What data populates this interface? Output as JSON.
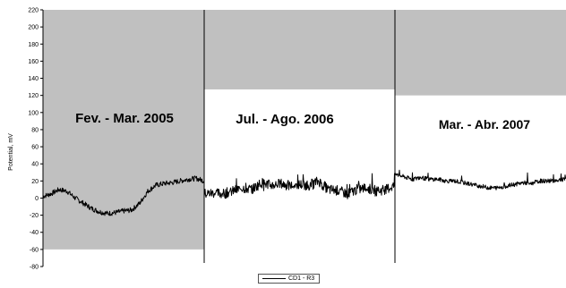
{
  "chart_data": {
    "type": "line",
    "title": "",
    "xlabel": "",
    "ylabel": "Potential, mV",
    "ylim": [
      -80,
      220
    ],
    "yticks": [
      -80,
      -60,
      -40,
      -20,
      0,
      20,
      40,
      60,
      80,
      100,
      120,
      140,
      160,
      180,
      200,
      220
    ],
    "grid": false,
    "legend_position": "bottom",
    "periods": [
      {
        "label": "Fev. - Mar. 2005",
        "shade_range": [
          -60,
          220
        ]
      },
      {
        "label": "Jul. - Ago. 2006",
        "shade_range": [
          127,
          220
        ]
      },
      {
        "label": "Mar. - Abr. 2007",
        "shade_range": [
          120,
          220
        ]
      }
    ],
    "series": [
      {
        "name": "CD1 - R3",
        "color": "#000000",
        "periods": [
          {
            "t": [
              0,
              0.05,
              0.1,
              0.15,
              0.2,
              0.25,
              0.3,
              0.35,
              0.4,
              0.45,
              0.5,
              0.55,
              0.6,
              0.65,
              0.7,
              0.75,
              0.8,
              0.85,
              0.9,
              0.95,
              1.0
            ],
            "values": [
              2,
              5,
              10,
              8,
              0,
              -6,
              -12,
              -16,
              -18,
              -17,
              -15,
              -14,
              -6,
              8,
              15,
              17,
              18,
              20,
              22,
              23,
              20
            ]
          },
          {
            "t": [
              0,
              0.05,
              0.1,
              0.15,
              0.2,
              0.25,
              0.3,
              0.35,
              0.4,
              0.45,
              0.5,
              0.55,
              0.6,
              0.65,
              0.7,
              0.75,
              0.8,
              0.85,
              0.9,
              0.95,
              1.0
            ],
            "values": [
              5,
              6,
              5,
              8,
              12,
              10,
              18,
              15,
              17,
              14,
              16,
              15,
              20,
              10,
              9,
              5,
              10,
              12,
              8,
              10,
              15
            ]
          },
          {
            "t": [
              0,
              0.05,
              0.1,
              0.15,
              0.2,
              0.25,
              0.3,
              0.35,
              0.4,
              0.45,
              0.5,
              0.55,
              0.6,
              0.65,
              0.7,
              0.75,
              0.8,
              0.85,
              0.9,
              0.95,
              1.0
            ],
            "values": [
              28,
              25,
              22,
              24,
              22,
              22,
              20,
              20,
              18,
              16,
              14,
              12,
              12,
              14,
              16,
              18,
              17,
              20,
              20,
              21,
              22
            ]
          }
        ]
      }
    ]
  }
}
